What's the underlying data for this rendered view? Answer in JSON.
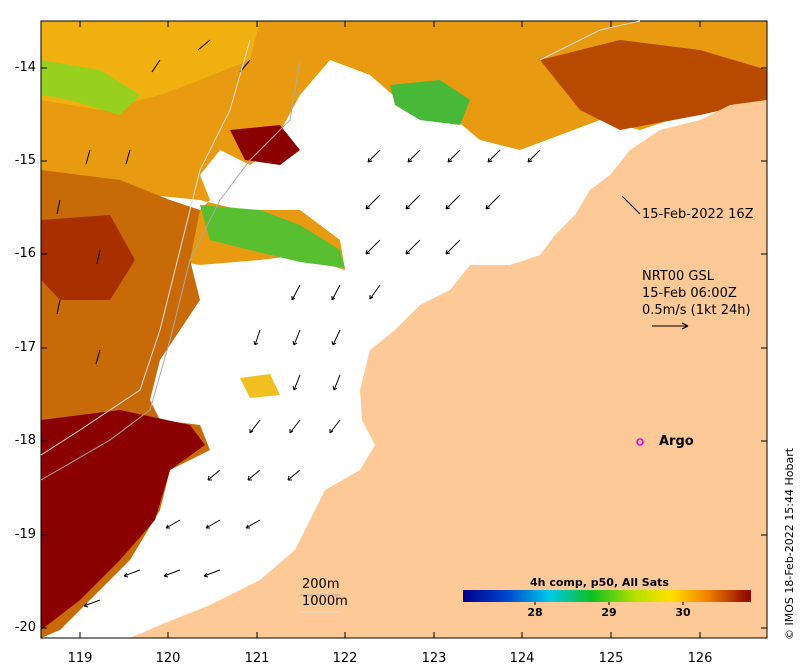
{
  "map": {
    "y_ticks": [
      "-14",
      "-15",
      "-16",
      "-17",
      "-18",
      "-19",
      "-20"
    ],
    "x_ticks": [
      "119",
      "120",
      "121",
      "122",
      "123",
      "124",
      "125",
      "126"
    ],
    "time_label": "15-Feb-2022 16Z",
    "current": {
      "line1": "NRT00 GSL",
      "line2": "15-Feb 06:00Z",
      "line3": "0.5m/s (1kt 24h)"
    },
    "argo_label": "Argo",
    "contours": {
      "line1": "200m",
      "line2": "1000m"
    },
    "colorbar": {
      "title": "4h comp, p50, All Sats",
      "ticks": [
        "28",
        "29",
        "30"
      ]
    },
    "credit": "© IMOS 18-Feb-2022 15:44 Hobart"
  }
}
